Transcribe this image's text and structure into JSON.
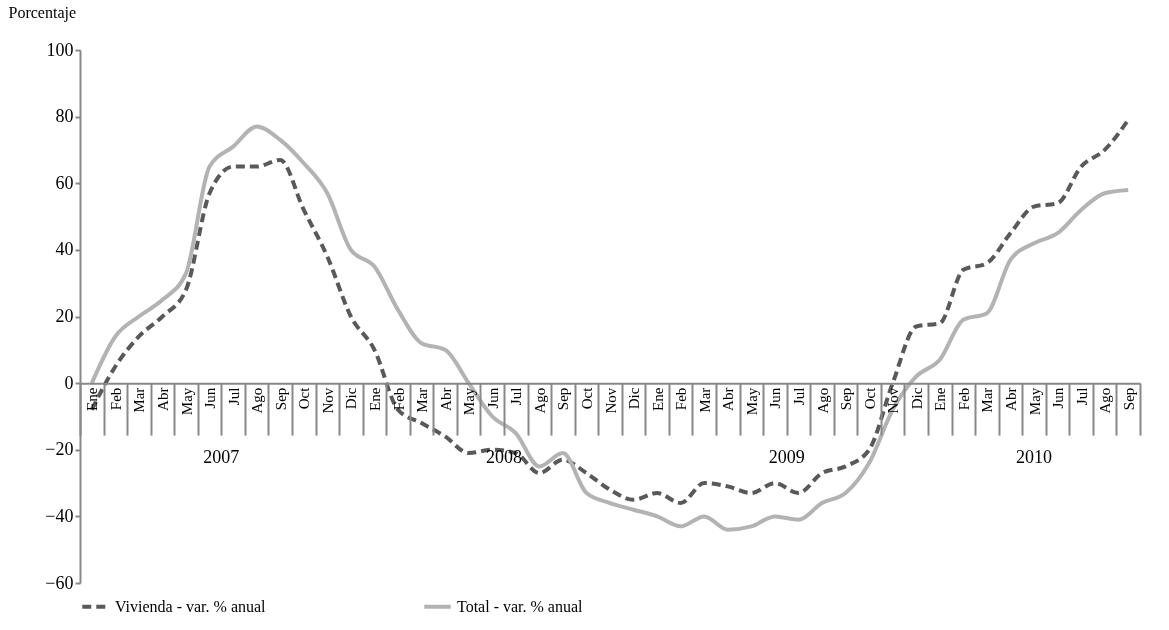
{
  "chart_data": {
    "type": "line",
    "ylabel": "Porcentaje",
    "categories": [
      "Ene",
      "Feb",
      "Mar",
      "Abr",
      "May",
      "Jun",
      "Jul",
      "Ago",
      "Sep",
      "Oct",
      "Nov",
      "Dic",
      "Ene",
      "Feb",
      "Mar",
      "Abr",
      "May",
      "Jun",
      "Jul",
      "Ago",
      "Sep",
      "Oct",
      "Nov",
      "Dic",
      "Ene",
      "Feb",
      "Mar",
      "Abr",
      "May",
      "Jun",
      "Jul",
      "Ago",
      "Sep",
      "Oct",
      "Nov",
      "Dic",
      "Ene",
      "Feb",
      "Mar",
      "Abr",
      "May",
      "Jun",
      "Jul",
      "Ago",
      "Sep"
    ],
    "annotations": [
      "2007",
      "2008",
      "2009",
      "2010"
    ],
    "series": [
      {
        "name": "Vivienda - var. % anual",
        "color": "#595959",
        "line_style": "dashed",
        "values": [
          -8,
          5,
          14,
          20,
          28,
          57,
          65,
          65,
          67,
          52,
          38,
          20,
          10,
          -8,
          -12,
          -16,
          -21,
          -20,
          -21,
          -27,
          -23,
          -27,
          -32,
          -35,
          -33,
          -36,
          -30,
          -31,
          -33,
          -30,
          -33,
          -27,
          -25,
          -20,
          0,
          17,
          18,
          34,
          36,
          45,
          53,
          54,
          65,
          70,
          79
        ]
      },
      {
        "name": "Total - var. % anual",
        "color": "#b3b3b3",
        "line_style": "solid",
        "values": [
          0,
          14,
          20,
          25,
          33,
          65,
          71,
          77,
          73,
          66,
          57,
          40,
          35,
          22,
          12,
          10,
          0,
          -10,
          -15,
          -25,
          -21,
          -33,
          -36,
          -38,
          -40,
          -43,
          -40,
          -44,
          -43,
          -40,
          -41,
          -36,
          -33,
          -24,
          -8,
          2,
          7,
          19,
          21,
          37,
          42,
          45,
          52,
          57,
          58
        ]
      }
    ],
    "ylim": [
      -60,
      100
    ],
    "yticks": [
      -60,
      -40,
      -20,
      0,
      20,
      40,
      60,
      80,
      100
    ],
    "legend": "bottom",
    "marker": "none"
  }
}
